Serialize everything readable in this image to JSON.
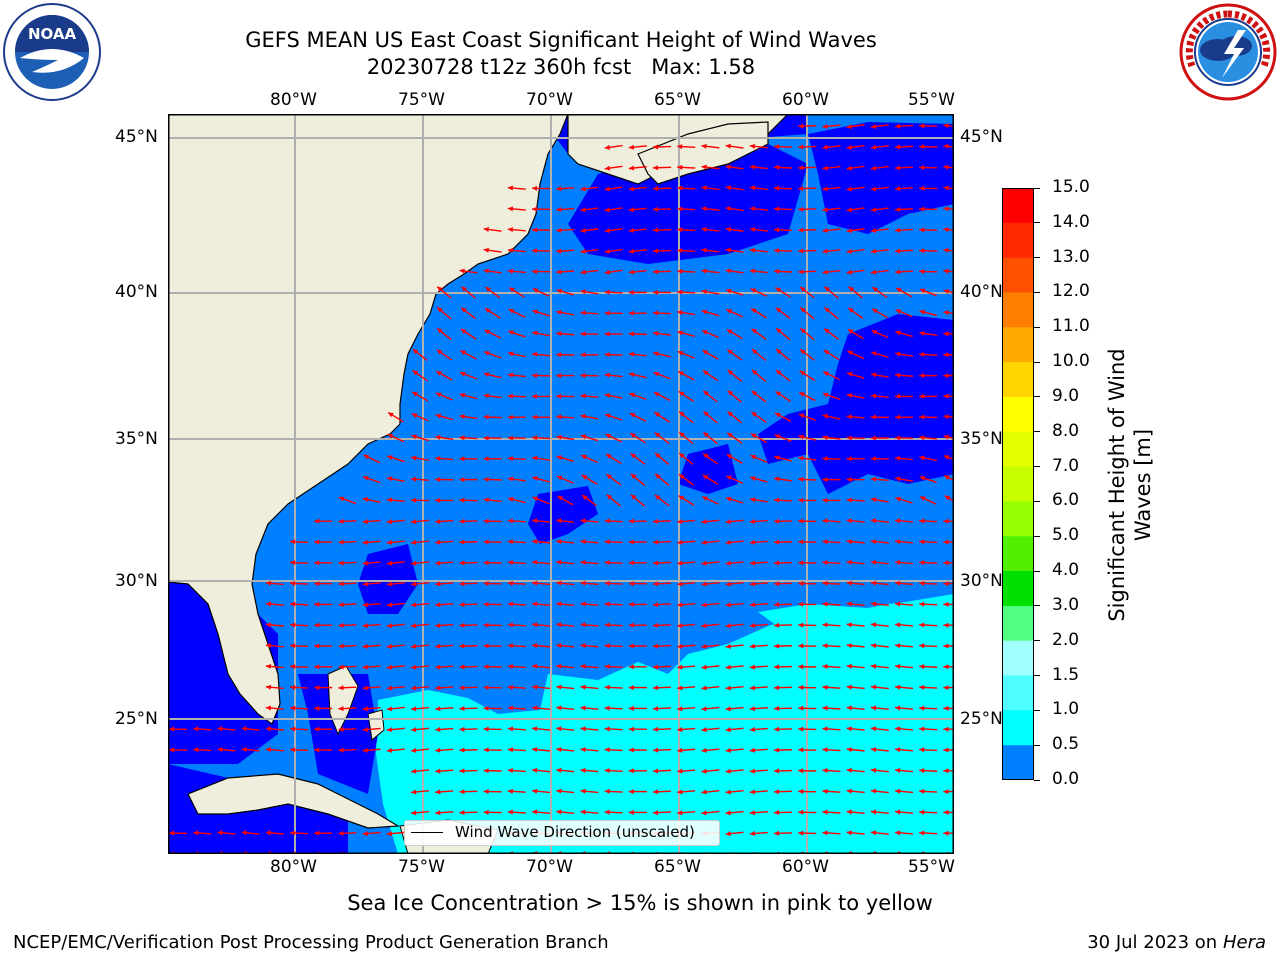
{
  "header": {
    "title_line1": "GEFS MEAN US East Coast Significant Height of Wind Waves",
    "title_line2": "20230728 t12z 360h fcst   Max: 1.58",
    "left_logo": "NOAA",
    "left_logo_ring": "NATIONAL OCEANIC AND ATMOSPHERIC ADMINISTRATION · U.S. DEPARTMENT OF COMMERCE",
    "right_logo_ring": "NATIONAL WEATHER SERVICE"
  },
  "map": {
    "lon_labels": [
      "80°W",
      "75°W",
      "70°W",
      "65°W",
      "60°W",
      "55°W"
    ],
    "lat_labels": [
      "45°N",
      "40°N",
      "35°N",
      "30°N",
      "25°N"
    ],
    "legend_label": "Wind Wave Direction (unscaled)",
    "colors": {
      "land": "#efeedc",
      "sea_low": "#0000ff",
      "sea_mid": "#0080ff",
      "sea_high": "#00ffff",
      "arrow": "#ff0000",
      "grid": "#b0b0b0"
    }
  },
  "colorbar": {
    "label_line1": "Significant Height of Wind",
    "label_line2": "Waves [m]",
    "ticks": [
      "15.0",
      "14.0",
      "13.0",
      "12.0",
      "11.0",
      "10.0",
      "9.0",
      "8.0",
      "7.0",
      "6.0",
      "5.0",
      "4.0",
      "3.0",
      "2.0",
      "1.5",
      "1.0",
      "0.5",
      "0.0"
    ],
    "segment_colors": [
      "#ff0000",
      "#ff2800",
      "#ff5000",
      "#ff8000",
      "#ffaa00",
      "#ffd400",
      "#ffff00",
      "#e6ff00",
      "#c8ff00",
      "#96ff00",
      "#50f000",
      "#00e000",
      "#50ff80",
      "#a0ffff",
      "#50ffff",
      "#00ffff",
      "#0080ff",
      "#0000ff"
    ]
  },
  "footer": {
    "sea_ice_note": "Sea Ice Concentration > 15% is shown in pink to yellow",
    "left_credit": "NCEP/EMC/Verification Post Processing Product Generation Branch",
    "date_text": "30 Jul 2023 on ",
    "machine": "Hera"
  }
}
